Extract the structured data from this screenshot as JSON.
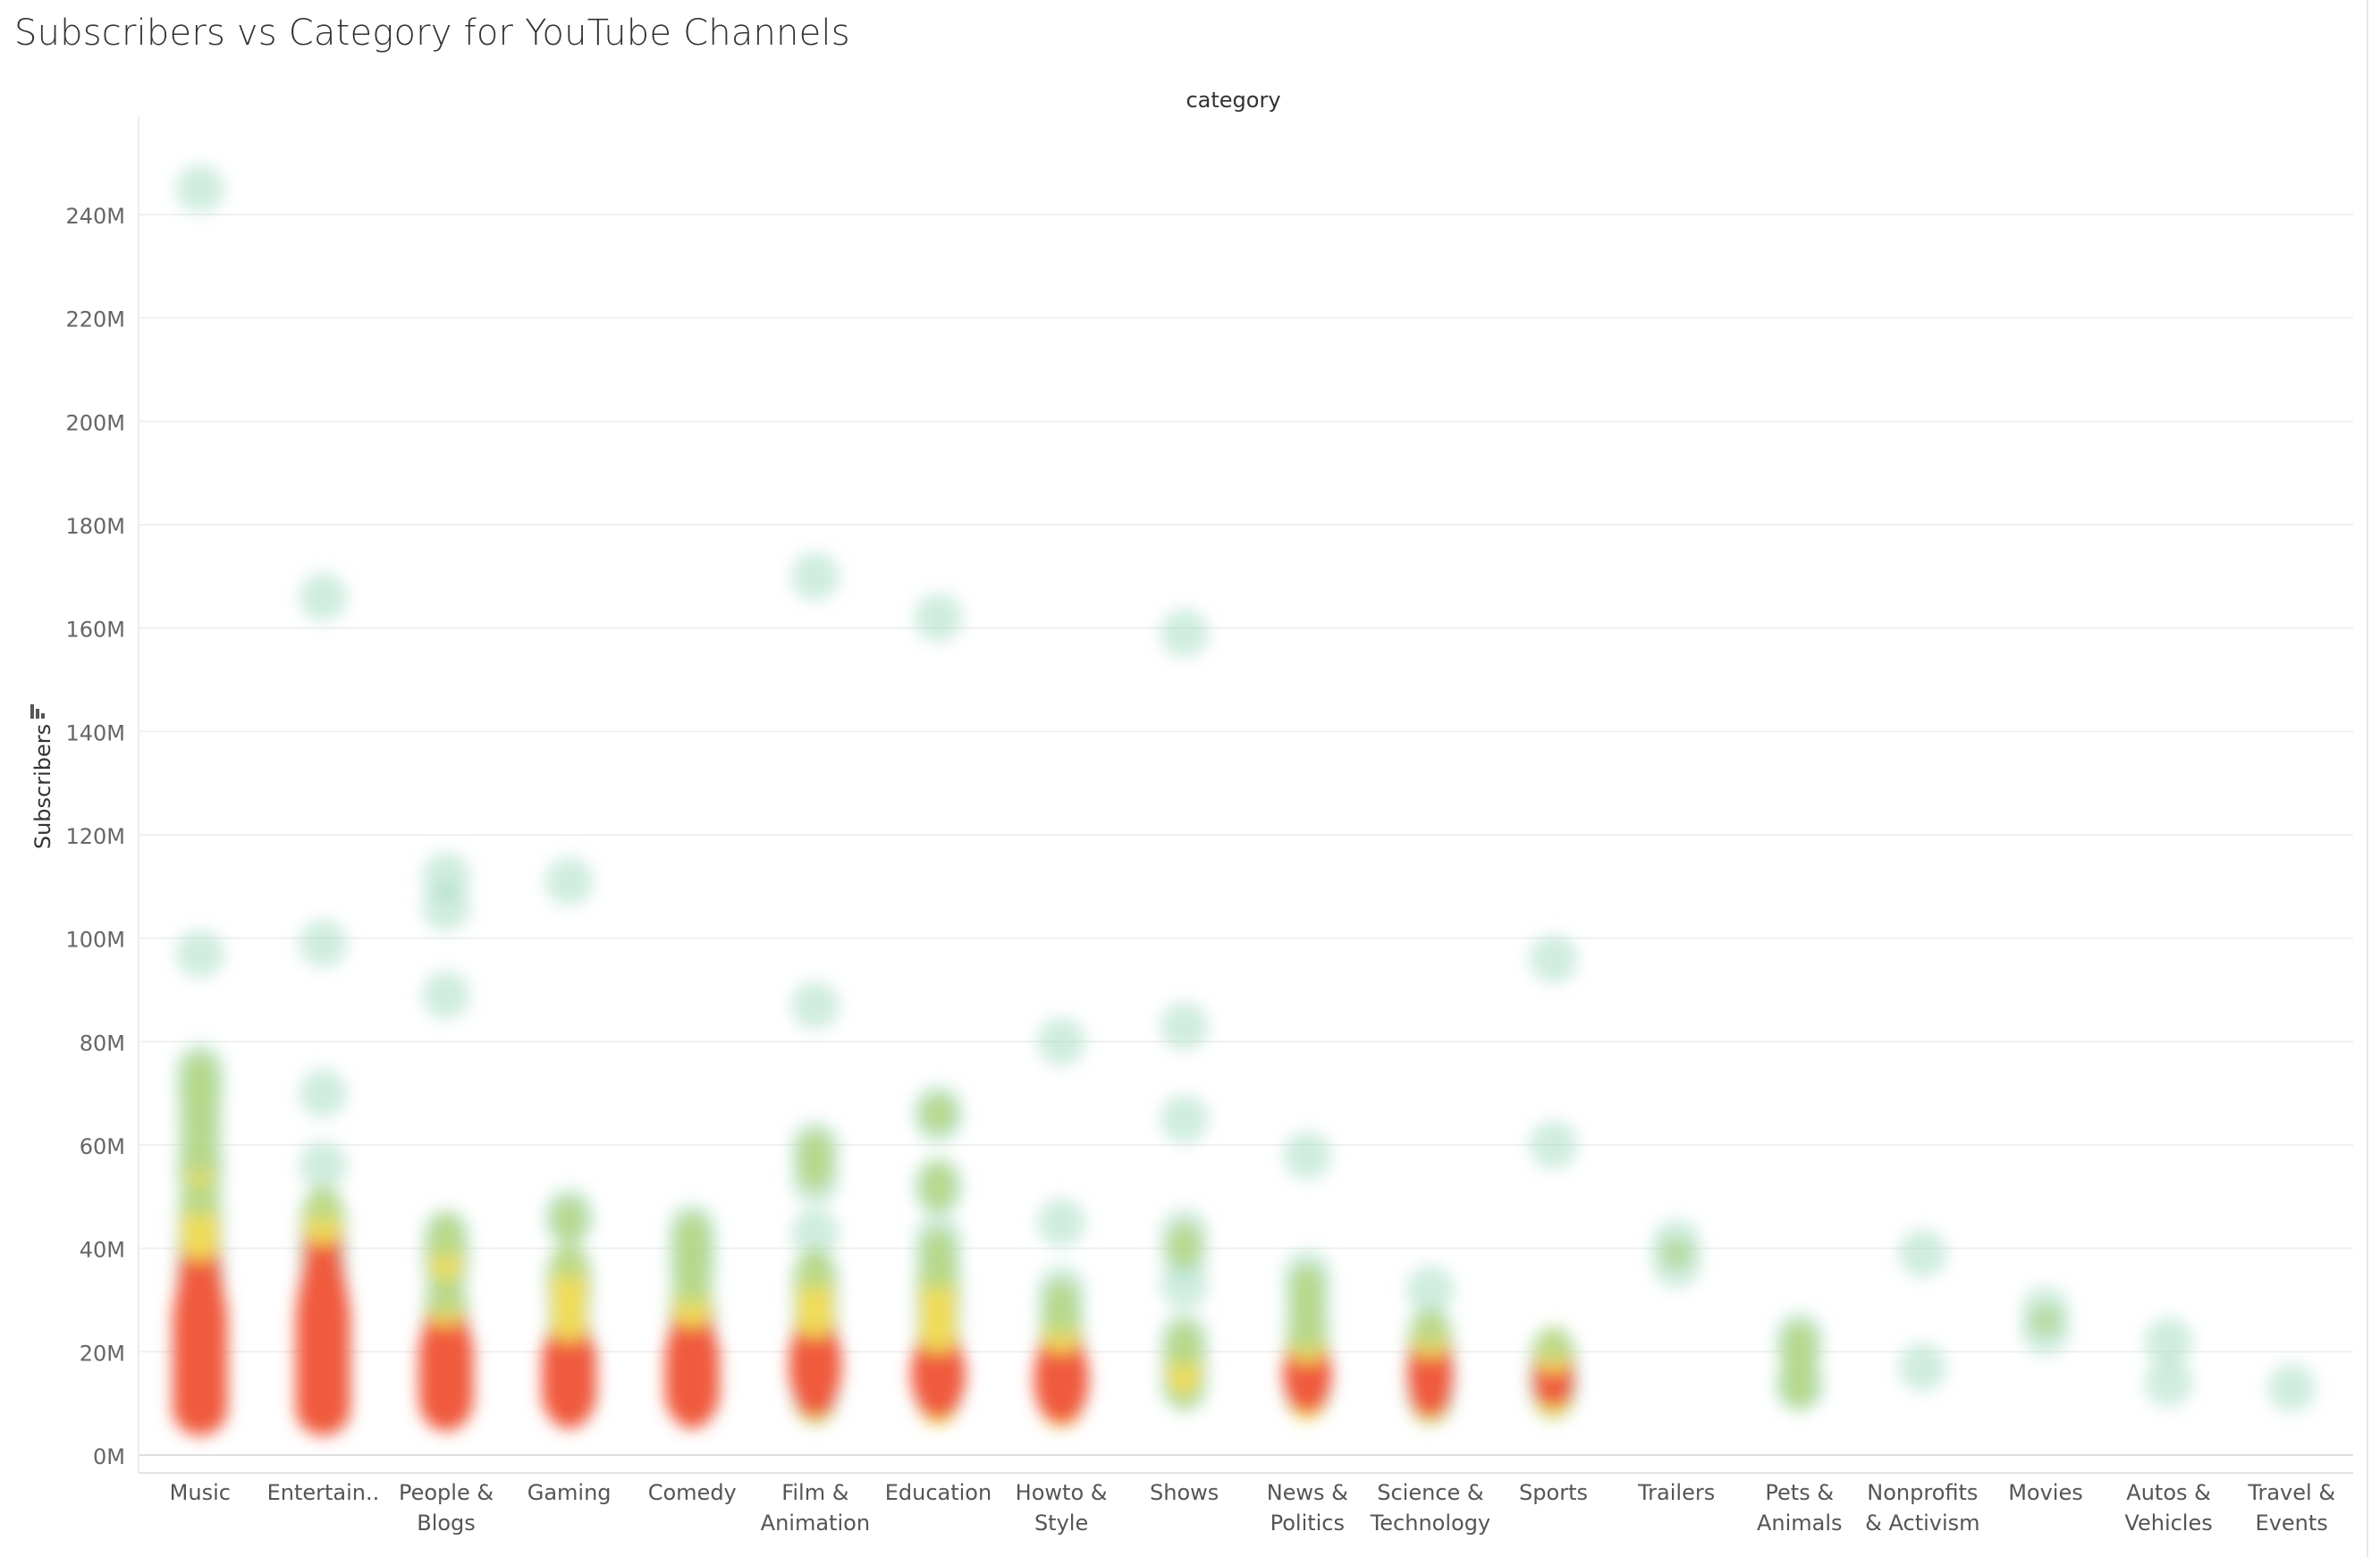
{
  "page": {
    "title": "Subscribers vs Category for YouTube Channels"
  },
  "chart_data": {
    "type": "scatter",
    "title": "Subscribers vs Category for YouTube Channels",
    "xlabel": "category",
    "ylabel": "Subscribers",
    "y_unit": "M",
    "ylim": [
      0,
      250
    ],
    "yticks": [
      0,
      20,
      40,
      60,
      80,
      100,
      120,
      140,
      160,
      180,
      200,
      220,
      240
    ],
    "ytick_labels": [
      "0M",
      "20M",
      "40M",
      "60M",
      "80M",
      "100M",
      "120M",
      "140M",
      "160M",
      "180M",
      "200M",
      "220M",
      "240M"
    ],
    "grid": true,
    "rendering": "density heatmap of circle marks (green low density → yellow → red high density)",
    "colors": {
      "low": "#a8dcc4",
      "mid": "#b7d98a",
      "yellow": "#f0dc5a",
      "high": "#f05a3c"
    },
    "categories": [
      {
        "name": "Music",
        "label": [
          "Music"
        ],
        "values": [
          245,
          97,
          75,
          72,
          70,
          66,
          62,
          57,
          56,
          53,
          48,
          46,
          44,
          42,
          40,
          38,
          36,
          35,
          34,
          32,
          31,
          30,
          29,
          28,
          27,
          26,
          25,
          24,
          24,
          23,
          22,
          22,
          21,
          21,
          20,
          20,
          19,
          19,
          18,
          18,
          18,
          17,
          17,
          17,
          16,
          16,
          16,
          15,
          15,
          15,
          15,
          14,
          14,
          14,
          14,
          13,
          13,
          13,
          13,
          13,
          12,
          12,
          12,
          12,
          12,
          12,
          11,
          11,
          11,
          11,
          11,
          11
        ]
      },
      {
        "name": "Entertainment",
        "label": [
          "Entertain.."
        ],
        "values": [
          166,
          99,
          70,
          56,
          47,
          45,
          44,
          42,
          40,
          38,
          36,
          34,
          33,
          32,
          31,
          30,
          29,
          28,
          27,
          26,
          25,
          24,
          24,
          23,
          22,
          22,
          21,
          21,
          20,
          20,
          19,
          19,
          18,
          18,
          18,
          17,
          17,
          17,
          16,
          16,
          16,
          15,
          15,
          15,
          15,
          14,
          14,
          14,
          14,
          13,
          13,
          13,
          13,
          12,
          12,
          12,
          12,
          12,
          11,
          11,
          11,
          11,
          11
        ]
      },
      {
        "name": "People & Blogs",
        "label": [
          "People &",
          "Blogs"
        ],
        "values": [
          112,
          106,
          89,
          43,
          40,
          38,
          36,
          30,
          27,
          25,
          24,
          23,
          22,
          21,
          20,
          19,
          18,
          17,
          17,
          16,
          15,
          15,
          14,
          14,
          13,
          13,
          12,
          12,
          12,
          11,
          11,
          11
        ]
      },
      {
        "name": "Gaming",
        "label": [
          "Gaming"
        ],
        "values": [
          111,
          47,
          45,
          36,
          34,
          33,
          31,
          28,
          24,
          22,
          21,
          20,
          19,
          18,
          17,
          16,
          16,
          15,
          15,
          14,
          14,
          13,
          13,
          12,
          12,
          11,
          11
        ]
      },
      {
        "name": "Comedy",
        "label": [
          "Comedy"
        ],
        "values": [
          44,
          41,
          38,
          35,
          30,
          28,
          27,
          25,
          23,
          22,
          21,
          20,
          19,
          18,
          17,
          17,
          16,
          15,
          15,
          14,
          14,
          13,
          13,
          12,
          12,
          11,
          11
        ]
      },
      {
        "name": "Film & Animation",
        "label": [
          "Film &",
          "Animation"
        ],
        "values": [
          170,
          87,
          60,
          57,
          53,
          43,
          35,
          33,
          31,
          29,
          26,
          24,
          22,
          21,
          20,
          19,
          18,
          18,
          17,
          16,
          15,
          14,
          13,
          12,
          11
        ]
      },
      {
        "name": "Education",
        "label": [
          "Education"
        ],
        "values": [
          162,
          67,
          65,
          53,
          51,
          42,
          38,
          34,
          32,
          30,
          28,
          25,
          22,
          20,
          19,
          18,
          17,
          16,
          16,
          15,
          14,
          14,
          13,
          12,
          11
        ]
      },
      {
        "name": "Howto & Style",
        "label": [
          "Howto &",
          "Style"
        ],
        "values": [
          80,
          45,
          32,
          28,
          24,
          22,
          20,
          19,
          18,
          17,
          16,
          15,
          15,
          14,
          13,
          12,
          12,
          11,
          11
        ]
      },
      {
        "name": "Shows",
        "label": [
          "Shows"
        ],
        "values": [
          159,
          83,
          65,
          43,
          39,
          33,
          23,
          20,
          17,
          15,
          13
        ]
      },
      {
        "name": "News & Politics",
        "label": [
          "News &",
          "Politics"
        ],
        "values": [
          58,
          35,
          31,
          26,
          22,
          19,
          18,
          17,
          16,
          15,
          15,
          14,
          13,
          12
        ]
      },
      {
        "name": "Science & Technology",
        "label": [
          "Science &",
          "Technology"
        ],
        "values": [
          32,
          24,
          21,
          20,
          19,
          17,
          16,
          15,
          14,
          13,
          12,
          11
        ]
      },
      {
        "name": "Sports",
        "label": [
          "Sports"
        ],
        "values": [
          96,
          60,
          20,
          18,
          16,
          15,
          14,
          13,
          12
        ]
      },
      {
        "name": "Trailers",
        "label": [
          "Trailers"
        ],
        "values": [
          41,
          37
        ]
      },
      {
        "name": "Pets & Animals",
        "label": [
          "Pets &",
          "Animals"
        ],
        "values": [
          23,
          20,
          14,
          13
        ]
      },
      {
        "name": "Nonprofits & Activism",
        "label": [
          "Nonprofits",
          "& Activism"
        ],
        "values": [
          39,
          17
        ]
      },
      {
        "name": "Movies",
        "label": [
          "Movies"
        ],
        "values": [
          28,
          24
        ]
      },
      {
        "name": "Autos & Vehicles",
        "label": [
          "Autos &",
          "Vehicles"
        ],
        "values": [
          22,
          14
        ]
      },
      {
        "name": "Travel & Events",
        "label": [
          "Travel &",
          "Events"
        ],
        "values": [
          13
        ]
      }
    ]
  }
}
